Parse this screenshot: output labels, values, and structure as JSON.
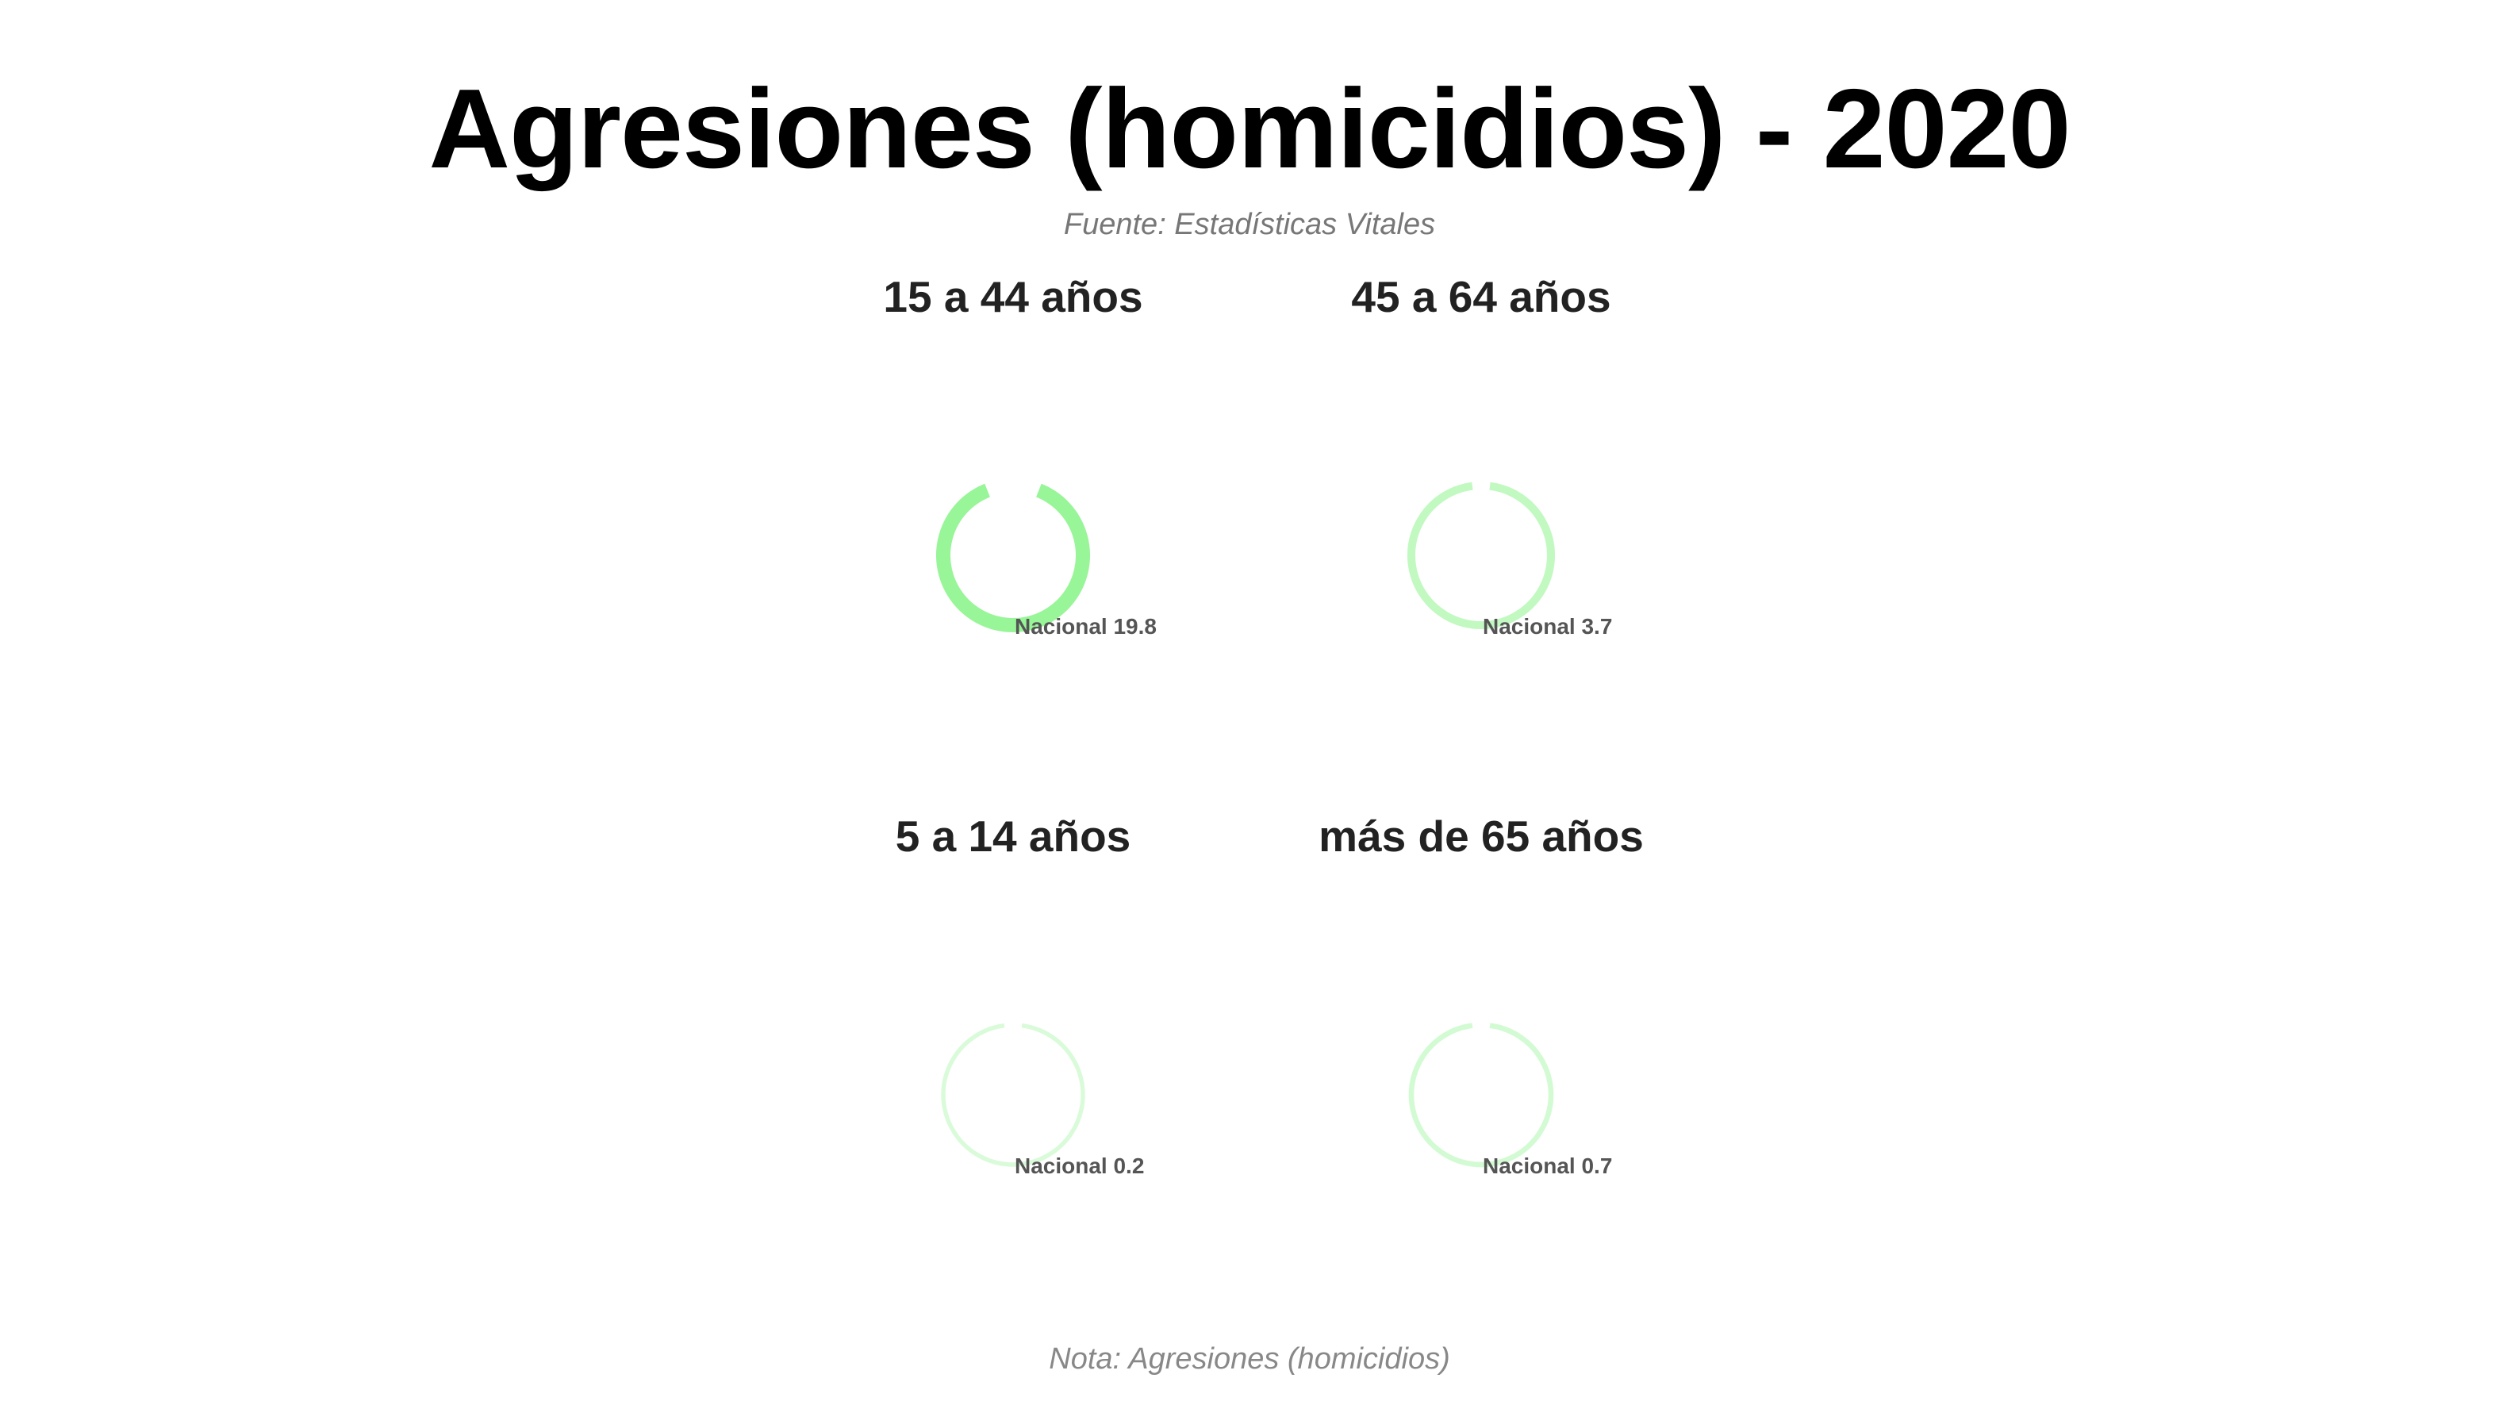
{
  "title": "Agresiones (homicidios) - 2020",
  "subtitle": "Fuente: Estadísticas Vitales",
  "note": "Nota: Agresiones (homicidios)",
  "colors": {
    "ring": "#98f598",
    "label": "#555555"
  },
  "chart_data": {
    "type": "donut",
    "series_label": "Nacional",
    "panels": [
      {
        "title": "15 a 44 años",
        "label": "Nacional 19.8",
        "value": 19.8
      },
      {
        "title": "45 a 64 años",
        "label": "Nacional 3.7",
        "value": 3.7
      },
      {
        "title": "5 a 14 años",
        "label": "Nacional 0.2",
        "value": 0.2
      },
      {
        "title": "más de 65 años",
        "label": "Nacional 0.7",
        "value": 0.7
      }
    ]
  }
}
